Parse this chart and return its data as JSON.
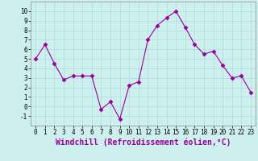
{
  "x": [
    0,
    1,
    2,
    3,
    4,
    5,
    6,
    7,
    8,
    9,
    10,
    11,
    12,
    13,
    14,
    15,
    16,
    17,
    18,
    19,
    20,
    21,
    22,
    23
  ],
  "y": [
    5.0,
    6.5,
    4.5,
    2.8,
    3.2,
    3.2,
    3.2,
    -0.3,
    0.5,
    -1.3,
    2.2,
    2.6,
    7.0,
    8.5,
    9.3,
    10.0,
    8.3,
    6.5,
    5.5,
    5.8,
    4.3,
    3.0,
    3.2,
    1.5
  ],
  "line_color": "#990099",
  "marker": "D",
  "marker_size": 2.5,
  "bg_color": "#cdf0ee",
  "grid_color": "#aaddda",
  "xlabel": "Windchill (Refroidissement éolien,°C)",
  "ylim": [
    -2,
    11
  ],
  "xlim": [
    -0.5,
    23.5
  ],
  "yticks": [
    -1,
    0,
    1,
    2,
    3,
    4,
    5,
    6,
    7,
    8,
    9,
    10
  ],
  "xticks": [
    0,
    1,
    2,
    3,
    4,
    5,
    6,
    7,
    8,
    9,
    10,
    11,
    12,
    13,
    14,
    15,
    16,
    17,
    18,
    19,
    20,
    21,
    22,
    23
  ],
  "tick_label_fontsize": 5.5,
  "xlabel_fontsize": 7.0
}
